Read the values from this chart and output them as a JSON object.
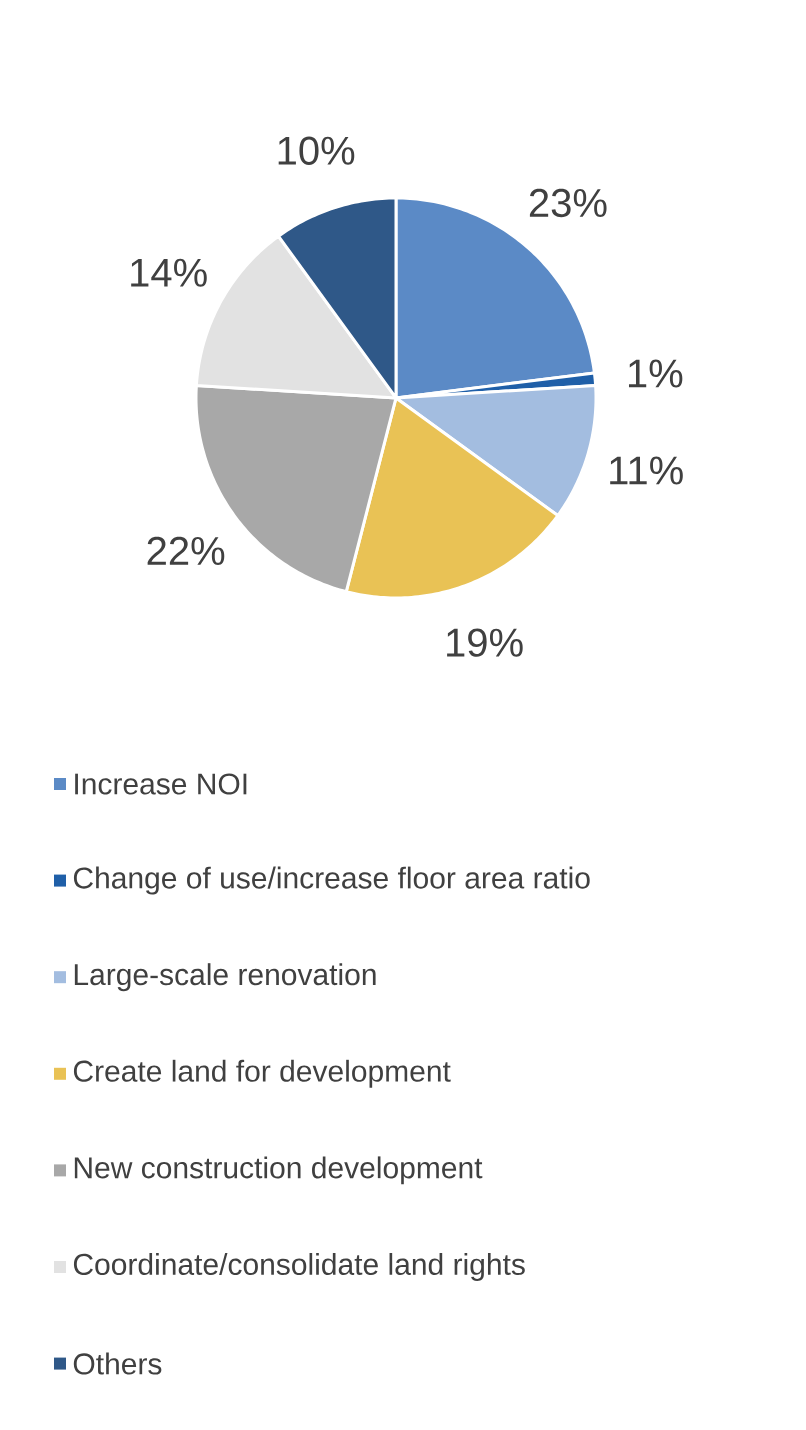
{
  "chart_data": {
    "type": "pie",
    "categories": [
      "Increase NOI",
      "Change of use/increase floor area ratio",
      "Large-scale renovation",
      "Create land for development",
      "New construction development",
      "Coordinate/consolidate land rights",
      "Others"
    ],
    "values": [
      23,
      1,
      11,
      19,
      22,
      14,
      10
    ],
    "value_labels": [
      "23%",
      "1%",
      "11%",
      "19%",
      "22%",
      "14%",
      "10%"
    ],
    "colors": [
      "#5b8ac6",
      "#1f5fa8",
      "#a3bde0",
      "#e9c255",
      "#a8a8a8",
      "#e2e2e2",
      "#2f5888"
    ],
    "legend": "bottom"
  }
}
